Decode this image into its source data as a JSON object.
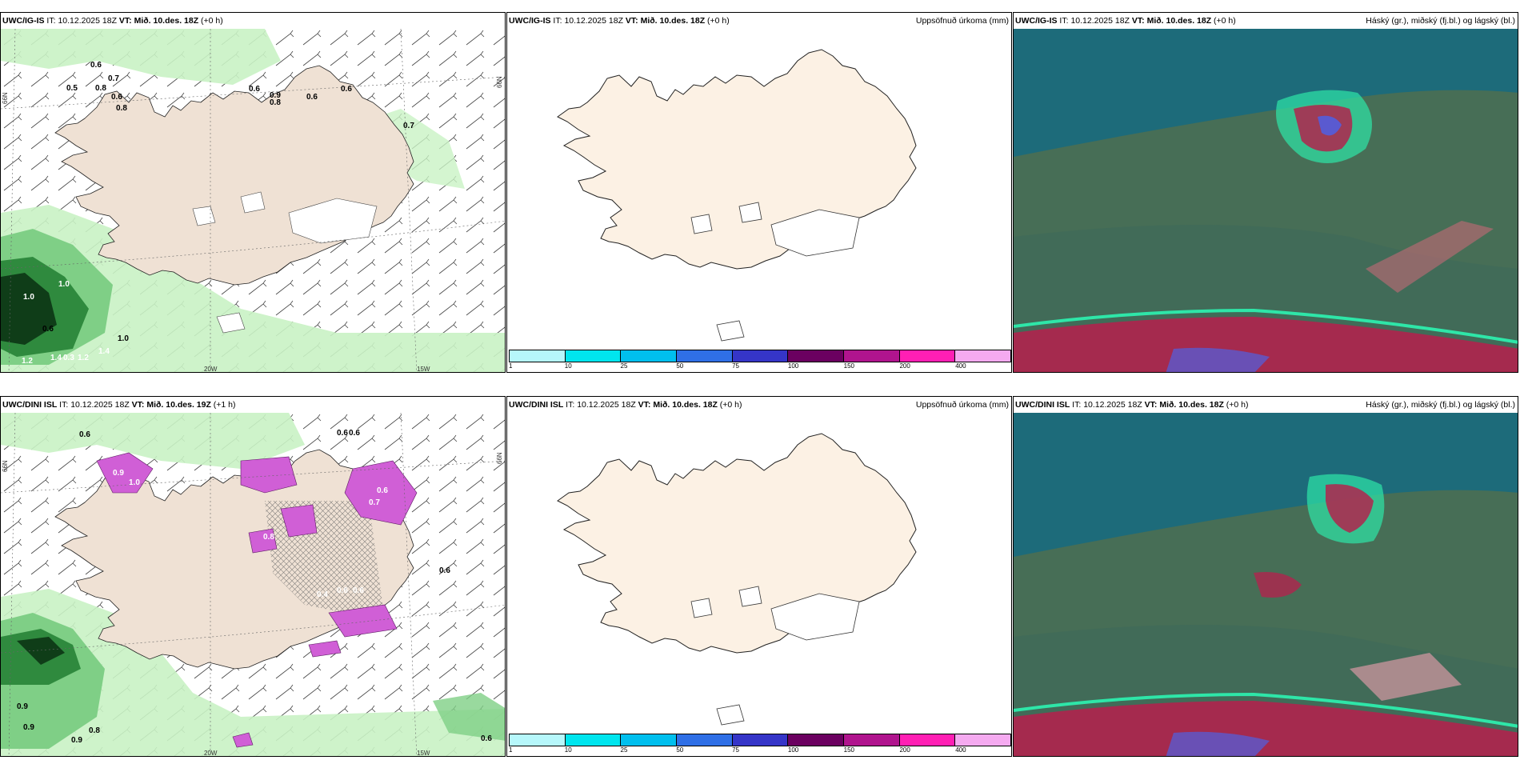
{
  "colors": {
    "land": "#efe1d4",
    "land_plain": "#fcf1e4",
    "sea_green_light": "#c9f2c4",
    "sea_green_mid": "#7fcf86",
    "sea_green_dark": "#1f6a2e",
    "sea_green_darkest": "#0f3d18",
    "magenta": "#d05fd6",
    "cloud_teal": "#1d6b7a",
    "cloud_olive": "#4f6e50",
    "cloud_mint": "#2ee6a8",
    "cloud_red": "#b0244e",
    "cloud_blue": "#5a5ad0"
  },
  "panels": [
    {
      "id": "tl",
      "model": "UWC/IG-IS",
      "it_label": "IT:",
      "it_value": "10.12.2025 18Z",
      "vt_label": "VT:",
      "vt_value": "Mið. 10.des. 18Z",
      "lead": "(+0 h)",
      "lat_labels": [
        "66N",
        "66N"
      ],
      "lon_labels": [
        "20W",
        "15W"
      ],
      "values": [
        "0.6",
        "0.7",
        "0.5",
        "0.8",
        "0.6",
        "0.8",
        "0.6",
        "0.9",
        "0.8",
        "0.6",
        "0.6",
        "0.7",
        "1.0",
        "1.0",
        "0.6",
        "1.0",
        "1.2",
        "1.4",
        "0.3",
        "1.2",
        "1.4"
      ]
    },
    {
      "id": "tm",
      "model": "UWC/IG-IS",
      "it_label": "IT:",
      "it_value": "10.12.2025 18Z",
      "vt_label": "VT:",
      "vt_value": "Mið. 10.des. 18Z",
      "lead": "(+0 h)",
      "right_title": "Uppsöfnuð úrkoma (mm)"
    },
    {
      "id": "tr",
      "model": "UWC/IG-IS",
      "it_label": "IT:",
      "it_value": "10.12.2025 18Z",
      "vt_label": "VT:",
      "vt_value": "Mið. 10.des. 18Z",
      "lead": "(+0 h)",
      "right_title": "Háský (gr.), miðský (fj.bl.) og lágský (bl.)"
    },
    {
      "id": "bl",
      "model": "UWC/DINI ISL",
      "it_label": "IT:",
      "it_value": "10.12.2025 18Z",
      "vt_label": "VT:",
      "vt_value": "Mið. 10.des. 19Z",
      "lead": "(+1 h)",
      "lat_labels": [
        "66N",
        "66N"
      ],
      "lon_labels": [
        "20W",
        "15W"
      ],
      "values": [
        "0.9",
        "0.8",
        "0.6",
        "0.6",
        "0.9",
        "0.9",
        "0.9",
        "0.6",
        "0.6",
        "0.4",
        "0.6",
        "0.6",
        "0.8",
        "0.6",
        "0.7",
        "1.0",
        "0.6"
      ]
    },
    {
      "id": "bm",
      "model": "UWC/DINI ISL",
      "it_label": "IT:",
      "it_value": "10.12.2025 18Z",
      "vt_label": "VT:",
      "vt_value": "Mið. 10.des. 18Z",
      "lead": "(+0 h)",
      "right_title": "Uppsöfnuð úrkoma (mm)"
    },
    {
      "id": "br",
      "model": "UWC/DINI ISL",
      "it_label": "IT:",
      "it_value": "10.12.2025 18Z",
      "vt_label": "VT:",
      "vt_value": "Mið. 10.des. 18Z",
      "lead": "(+0 h)",
      "right_title": "Háský (gr.), miðský (fj.bl.) og lágský (bl.)"
    }
  ],
  "colorbar": {
    "colors": [
      "#b6f7fb",
      "#00e5ee",
      "#00bfee",
      "#2f6fe6",
      "#3535c8",
      "#6b0060",
      "#b0148e",
      "#ff1fb4",
      "#f5aaf0"
    ],
    "ticks": [
      "1",
      "10",
      "25",
      "50",
      "75",
      "100",
      "150",
      "200",
      "400"
    ]
  }
}
